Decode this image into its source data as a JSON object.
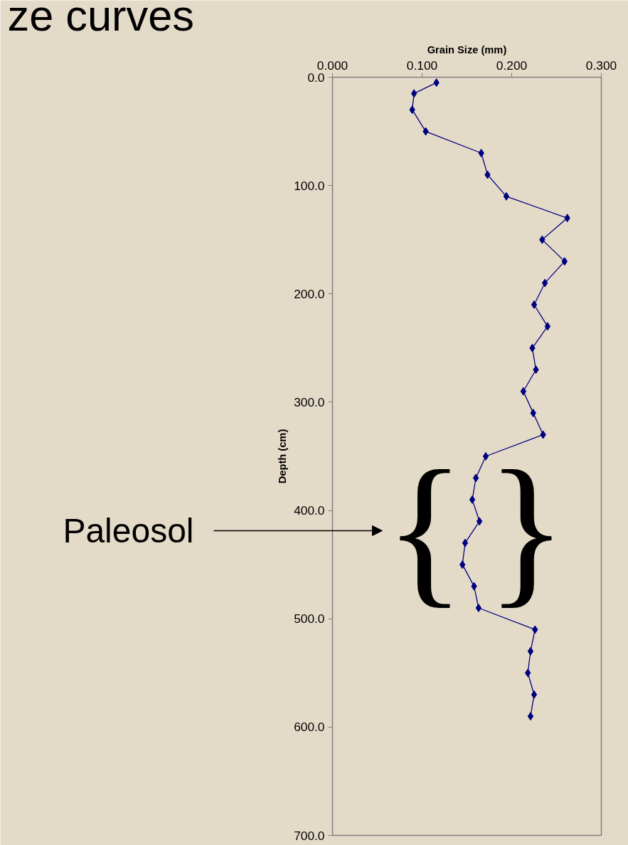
{
  "chart_data": {
    "type": "line",
    "title": "ze curves",
    "xlabel": "Grain Size (mm)",
    "ylabel": "Depth (cm)",
    "annotations": [
      "Paleosol",
      "{",
      "}"
    ],
    "x": [
      0.116,
      0.091,
      0.089,
      0.104,
      0.166,
      0.173,
      0.194,
      0.262,
      0.234,
      0.259,
      0.237,
      0.225,
      0.24,
      0.223,
      0.227,
      0.213,
      0.224,
      0.235,
      0.171,
      0.16,
      0.156,
      0.164,
      0.148,
      0.145,
      0.158,
      0.163,
      0.226,
      0.221,
      0.218,
      0.225,
      0.221
    ],
    "series": [
      {
        "color": "#000080",
        "values": [
          5,
          15,
          30,
          50,
          70,
          90,
          110,
          130,
          150,
          170,
          190,
          210,
          230,
          250,
          270,
          290,
          310,
          330,
          350,
          370,
          390,
          410,
          430,
          450,
          470,
          490,
          510,
          530,
          550,
          570,
          590
        ]
      }
    ],
    "xlim": [
      0,
      0.3
    ],
    "xticks": [
      {
        "value": 0,
        "label": "0.000"
      },
      {
        "value": 0.1,
        "label": "0.100"
      },
      {
        "value": 0.2,
        "label": "0.200"
      },
      {
        "value": 0.3,
        "label": "0.300"
      }
    ],
    "ylim": [
      700,
      0
    ],
    "yticks": [
      {
        "value": 0,
        "label": "0.0"
      },
      {
        "value": 100,
        "label": "100.0"
      },
      {
        "value": 200,
        "label": "200.0"
      },
      {
        "value": 300,
        "label": "300.0"
      },
      {
        "value": 400,
        "label": "400.0"
      },
      {
        "value": 500,
        "label": "500.0"
      },
      {
        "value": 600,
        "label": "600.0"
      },
      {
        "value": 700,
        "label": "700.0"
      }
    ],
    "marker": "diamond",
    "grid": false
  }
}
